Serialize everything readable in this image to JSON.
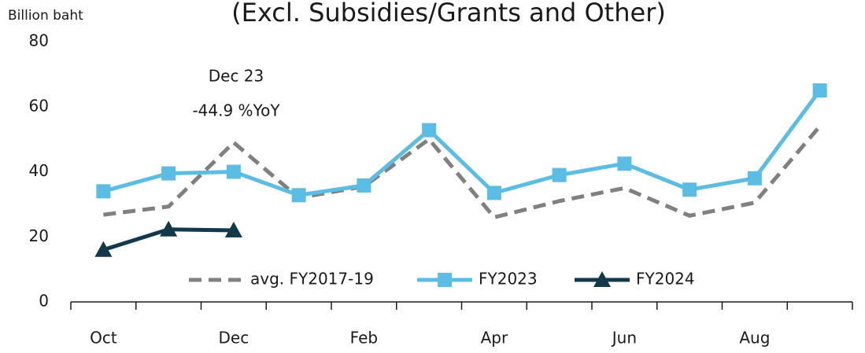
{
  "chart_data": {
    "type": "line",
    "title": "(Excl. Subsidies/Grants and Other)",
    "y_axis_label": "Billion baht",
    "annotations": [
      "Dec 23",
      "-44.9 %YoY"
    ],
    "categories": [
      "Oct",
      null,
      "Dec",
      null,
      "Feb",
      null,
      "Apr",
      null,
      "Jun",
      null,
      "Aug",
      null
    ],
    "series": [
      {
        "name": "avg. FY2017-19",
        "color": "#808080",
        "dash": true,
        "marker": "none",
        "values": [
          26.8,
          29.3,
          49,
          32,
          35.5,
          50,
          26,
          31,
          35,
          26.5,
          30.5,
          54
        ]
      },
      {
        "name": "FY2023",
        "color": "#5bbce4",
        "dash": false,
        "marker": "square",
        "values": [
          34,
          39.5,
          40,
          32.8,
          35.8,
          52.8,
          33.5,
          39,
          42.5,
          34.5,
          38,
          65
        ]
      },
      {
        "name": "FY2024",
        "color": "#12394a",
        "dash": false,
        "marker": "triangle",
        "values": [
          16,
          22.3,
          22,
          null,
          null,
          null,
          null,
          null,
          null,
          null,
          null,
          null
        ]
      }
    ],
    "ylim": [
      0,
      80
    ],
    "yticks": [
      0,
      20,
      40,
      60,
      80
    ],
    "grid": false
  }
}
